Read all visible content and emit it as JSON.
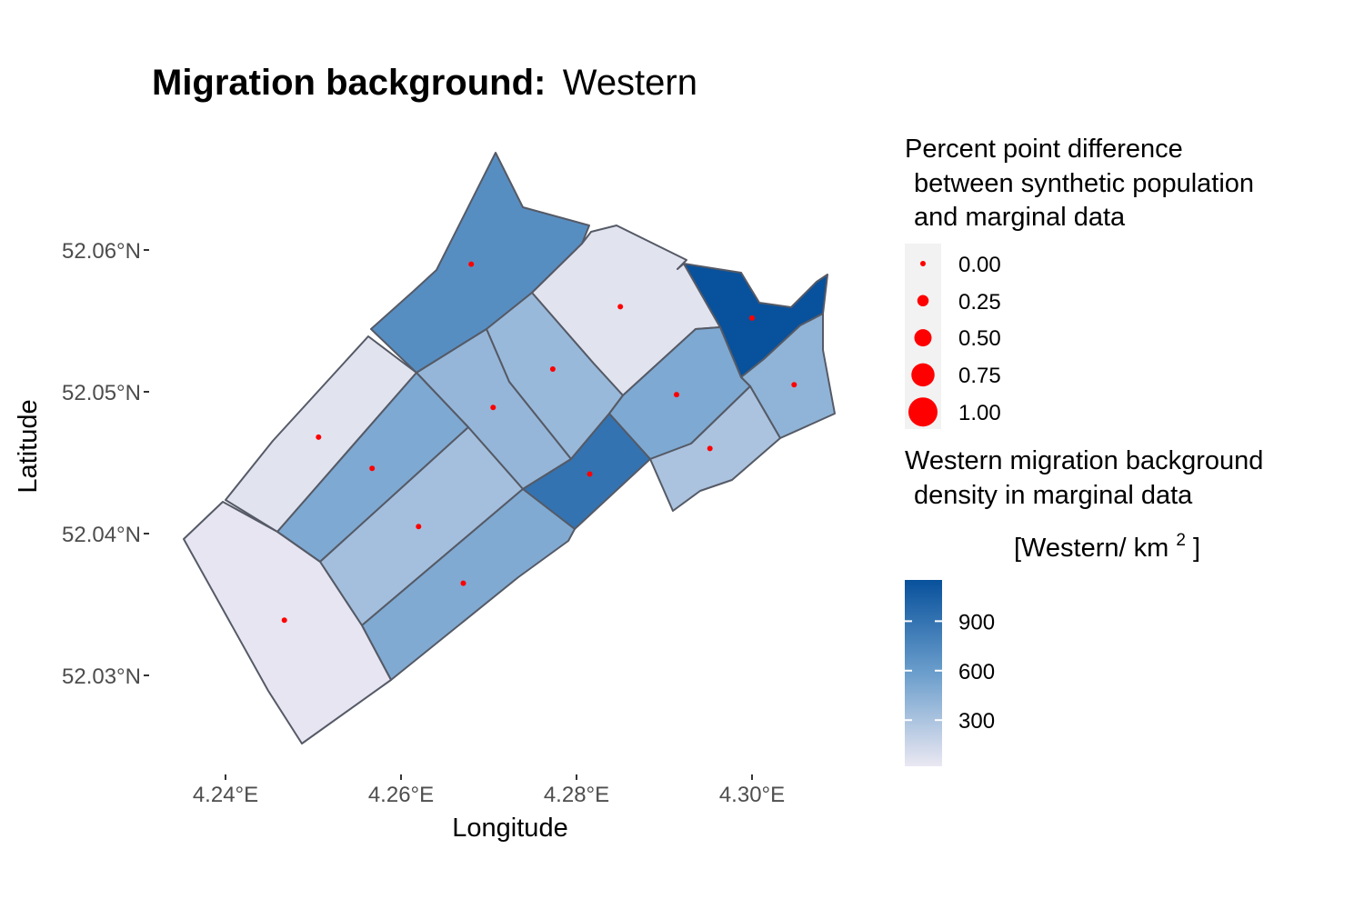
{
  "title": {
    "bold": "Migration background:",
    "regular": "Western"
  },
  "axes": {
    "x_title": "Longitude",
    "y_title": "Latitude",
    "x_ticks": [
      "4.24°E",
      "4.26°E",
      "4.28°E",
      "4.30°E"
    ],
    "y_ticks": [
      "52.06°N",
      "52.05°N",
      "52.04°N",
      "52.03°N"
    ]
  },
  "size_legend": {
    "title_lines": [
      "Percent point difference",
      "between synthetic population",
      "and marginal data"
    ],
    "labels": [
      "0.00",
      "0.25",
      "0.50",
      "0.75",
      "1.00"
    ],
    "values": [
      0,
      0.25,
      0.5,
      0.75,
      1.0
    ],
    "point_color": "#ff0000"
  },
  "color_legend": {
    "title_lines": [
      "Western migration background",
      "density in marginal data"
    ],
    "unit_prefix": "[Western/ km",
    "unit_exp": "2",
    "unit_suffix": " ]",
    "labels": [
      "900",
      "600",
      "300"
    ],
    "values": [
      900,
      600,
      300
    ],
    "range": [
      20,
      1150
    ],
    "color_low": "#eae8f2",
    "color_high": "#08519c"
  },
  "chart_data": {
    "type": "choropleth",
    "fill_variable": "Western migration background density in marginal data",
    "size_variable": "Percent point difference between synthetic population and marginal data",
    "xlim": [
      4.232,
      4.312
    ],
    "ylim": [
      52.024,
      52.068
    ],
    "regions": [
      {
        "id": "r1",
        "density": 700,
        "diff": 0.0,
        "centroid": [
          4.268,
          52.059
        ]
      },
      {
        "id": "r2",
        "density": 60,
        "diff": 0.0,
        "centroid": [
          4.285,
          52.056
        ]
      },
      {
        "id": "r3",
        "density": 1150,
        "diff": 0.0,
        "centroid": [
          4.3,
          52.0552
        ]
      },
      {
        "id": "r4",
        "density": 380,
        "diff": 0.0,
        "centroid": [
          4.2773,
          52.0516
        ]
      },
      {
        "id": "r5",
        "density": 400,
        "diff": 0.0,
        "centroid": [
          4.2705,
          52.0489
        ]
      },
      {
        "id": "r6",
        "density": 420,
        "diff": 0.0,
        "centroid": [
          4.3048,
          52.0505
        ]
      },
      {
        "id": "r7",
        "density": 500,
        "diff": 0.0,
        "centroid": [
          4.2914,
          52.0498
        ]
      },
      {
        "id": "r8",
        "density": 60,
        "diff": 0.0,
        "centroid": [
          4.2506,
          52.0468
        ]
      },
      {
        "id": "r9",
        "density": 500,
        "diff": 0.0,
        "centroid": [
          4.2567,
          52.0446
        ]
      },
      {
        "id": "r10",
        "density": 900,
        "diff": 0.0,
        "centroid": [
          4.2815,
          52.0442
        ]
      },
      {
        "id": "r11",
        "density": 300,
        "diff": 0.0,
        "centroid": [
          4.2952,
          52.046
        ]
      },
      {
        "id": "r12",
        "density": 330,
        "diff": 0.0,
        "centroid": [
          4.262,
          52.0405
        ]
      },
      {
        "id": "r13",
        "density": 490,
        "diff": 0.0,
        "centroid": [
          4.2671,
          52.0365
        ]
      },
      {
        "id": "r14",
        "density": 40,
        "diff": 0.0,
        "centroid": [
          4.2467,
          52.0339
        ]
      }
    ]
  }
}
